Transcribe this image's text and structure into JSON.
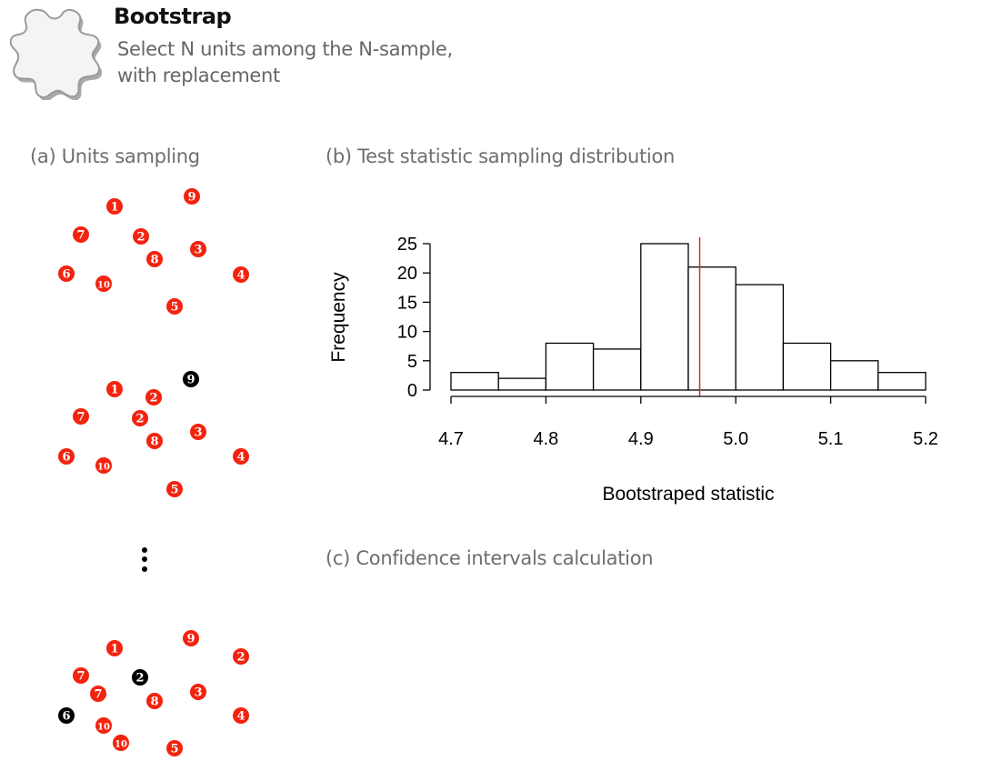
{
  "header": {
    "title": "Bootstrap",
    "subtitle_lines": [
      "Select N units among the N-sample,",
      "with replacement"
    ],
    "icon": "puzzle-piece-icon"
  },
  "panels": {
    "a": {
      "label": "(a) Units sampling"
    },
    "b": {
      "label": "(b) Test statistic sampling distribution"
    },
    "c": {
      "label": "(c) Confidence intervals calculation"
    }
  },
  "colors": {
    "selected": "#f2230f",
    "unselected": "#000000",
    "reference_line": "#e8261c"
  },
  "samples": [
    {
      "units": [
        {
          "n": "1",
          "state": "selected"
        },
        {
          "n": "2",
          "state": "selected"
        },
        {
          "n": "3",
          "state": "selected"
        },
        {
          "n": "4",
          "state": "selected"
        },
        {
          "n": "5",
          "state": "selected"
        },
        {
          "n": "6",
          "state": "selected"
        },
        {
          "n": "7",
          "state": "selected"
        },
        {
          "n": "8",
          "state": "selected"
        },
        {
          "n": "9",
          "state": "selected"
        },
        {
          "n": "10",
          "state": "selected"
        }
      ]
    },
    {
      "units": [
        {
          "n": "9",
          "state": "unselected"
        },
        {
          "n": "1",
          "state": "selected"
        },
        {
          "n": "2",
          "state": "selected"
        },
        {
          "n": "7",
          "state": "selected"
        },
        {
          "n": "2",
          "state": "selected"
        },
        {
          "n": "3",
          "state": "selected"
        },
        {
          "n": "8",
          "state": "selected"
        },
        {
          "n": "6",
          "state": "selected"
        },
        {
          "n": "10",
          "state": "selected"
        },
        {
          "n": "4",
          "state": "selected"
        },
        {
          "n": "5",
          "state": "selected"
        }
      ]
    },
    {
      "units": [
        {
          "n": "9",
          "state": "selected"
        },
        {
          "n": "1",
          "state": "selected"
        },
        {
          "n": "2",
          "state": "selected"
        },
        {
          "n": "7",
          "state": "selected"
        },
        {
          "n": "2",
          "state": "unselected"
        },
        {
          "n": "7",
          "state": "selected"
        },
        {
          "n": "3",
          "state": "selected"
        },
        {
          "n": "8",
          "state": "selected"
        },
        {
          "n": "6",
          "state": "unselected"
        },
        {
          "n": "4",
          "state": "selected"
        },
        {
          "n": "10",
          "state": "selected"
        },
        {
          "n": "10",
          "state": "selected"
        },
        {
          "n": "5",
          "state": "selected"
        }
      ]
    }
  ],
  "chart_data": {
    "type": "bar",
    "title": "",
    "xlabel": "Bootstraped statistic",
    "ylabel": "Frequency",
    "bin_edges": [
      4.7,
      4.75,
      4.8,
      4.85,
      4.9,
      4.95,
      5.0,
      5.05,
      5.1,
      5.15,
      5.2
    ],
    "values": [
      3,
      2,
      8,
      7,
      25,
      21,
      18,
      8,
      5,
      3
    ],
    "xlim": [
      4.7,
      5.2
    ],
    "ylim": [
      0,
      25
    ],
    "x_ticks": [
      "4.7",
      "4.8",
      "4.9",
      "5.0",
      "5.1",
      "5.2"
    ],
    "y_ticks": [
      "0",
      "5",
      "10",
      "15",
      "20",
      "25"
    ],
    "reference_line_x": 4.962,
    "grid": false
  }
}
